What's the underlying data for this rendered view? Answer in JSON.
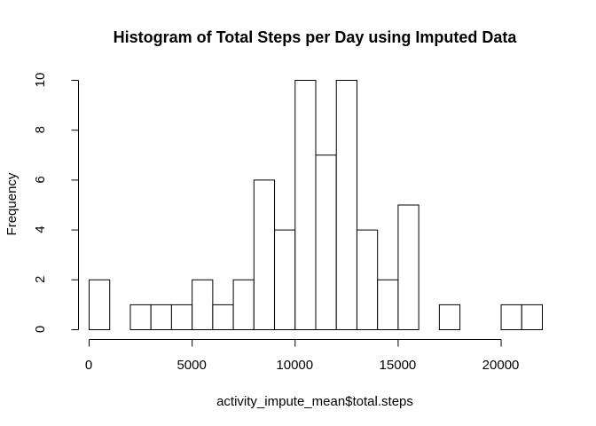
{
  "chart_data": {
    "type": "bar",
    "title": "Histogram of Total Steps per Day using Imputed Data",
    "xlabel": "activity_impute_mean$total.steps",
    "ylabel": "Frequency",
    "bin_width": 1000,
    "bins_start": 0,
    "values": [
      2,
      0,
      1,
      1,
      1,
      2,
      1,
      2,
      6,
      4,
      10,
      7,
      10,
      4,
      2,
      5,
      0,
      1,
      0,
      0,
      1,
      1
    ],
    "xlim": [
      0,
      22000
    ],
    "ylim": [
      0,
      10
    ],
    "x_ticks": [
      0,
      5000,
      10000,
      15000,
      20000
    ],
    "x_tick_labels": [
      "0",
      "5000",
      "10000",
      "15000",
      "20000"
    ],
    "y_ticks": [
      0,
      2,
      4,
      6,
      8,
      10
    ],
    "y_tick_labels": [
      "0",
      "2",
      "4",
      "6",
      "8",
      "10"
    ],
    "grid": false,
    "legend": "none",
    "bar_fill": "#ffffff",
    "bar_stroke": "#000000"
  }
}
